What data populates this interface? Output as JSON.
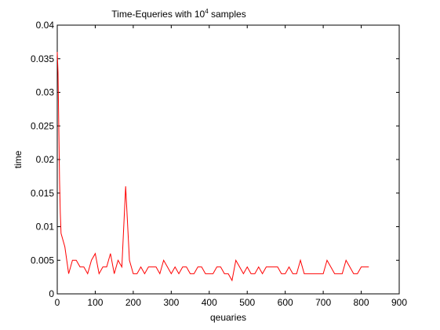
{
  "chart_data": {
    "type": "line",
    "title": "Time-Equeries with 10",
    "title_superscript": "4",
    "title_suffix": " samples",
    "xlabel": "qeuaries",
    "ylabel": "time",
    "xlim": [
      0,
      900
    ],
    "ylim": [
      0,
      0.04
    ],
    "xticks": [
      0,
      100,
      200,
      300,
      400,
      500,
      600,
      700,
      800,
      900
    ],
    "yticks": [
      0,
      0.005,
      0.01,
      0.015,
      0.02,
      0.025,
      0.03,
      0.035,
      0.04
    ],
    "ytick_labels": [
      "0",
      "0.005",
      "0.01",
      "0.015",
      "0.02",
      "0.025",
      "0.03",
      "0.035",
      "0.04"
    ],
    "grid": false,
    "legend": "none",
    "series": [
      {
        "color": "#ff0000",
        "x": [
          0,
          2,
          4,
          6,
          8,
          10,
          20,
          30,
          40,
          50,
          60,
          70,
          80,
          90,
          100,
          110,
          120,
          130,
          140,
          150,
          160,
          170,
          180,
          190,
          200,
          210,
          220,
          230,
          240,
          250,
          260,
          270,
          280,
          290,
          300,
          310,
          320,
          330,
          340,
          350,
          360,
          370,
          380,
          390,
          400,
          410,
          420,
          430,
          440,
          450,
          460,
          470,
          480,
          490,
          500,
          510,
          520,
          530,
          540,
          550,
          560,
          570,
          580,
          590,
          600,
          610,
          620,
          630,
          640,
          650,
          660,
          670,
          680,
          690,
          700,
          710,
          720,
          730,
          740,
          750,
          760,
          770,
          780,
          790,
          800,
          810,
          820
        ],
        "y": [
          0.036,
          0.033,
          0.025,
          0.017,
          0.012,
          0.009,
          0.007,
          0.003,
          0.005,
          0.005,
          0.004,
          0.004,
          0.003,
          0.005,
          0.006,
          0.003,
          0.004,
          0.004,
          0.006,
          0.003,
          0.005,
          0.004,
          0.016,
          0.005,
          0.003,
          0.003,
          0.004,
          0.003,
          0.004,
          0.004,
          0.004,
          0.003,
          0.005,
          0.004,
          0.003,
          0.004,
          0.003,
          0.004,
          0.004,
          0.003,
          0.003,
          0.004,
          0.004,
          0.003,
          0.003,
          0.003,
          0.004,
          0.004,
          0.003,
          0.003,
          0.002,
          0.005,
          0.004,
          0.003,
          0.004,
          0.003,
          0.003,
          0.004,
          0.003,
          0.004,
          0.004,
          0.004,
          0.004,
          0.003,
          0.003,
          0.004,
          0.003,
          0.003,
          0.005,
          0.003,
          0.003,
          0.003,
          0.003,
          0.003,
          0.003,
          0.005,
          0.004,
          0.003,
          0.003,
          0.003,
          0.005,
          0.004,
          0.003,
          0.003,
          0.004,
          0.004,
          0.004
        ]
      }
    ]
  }
}
